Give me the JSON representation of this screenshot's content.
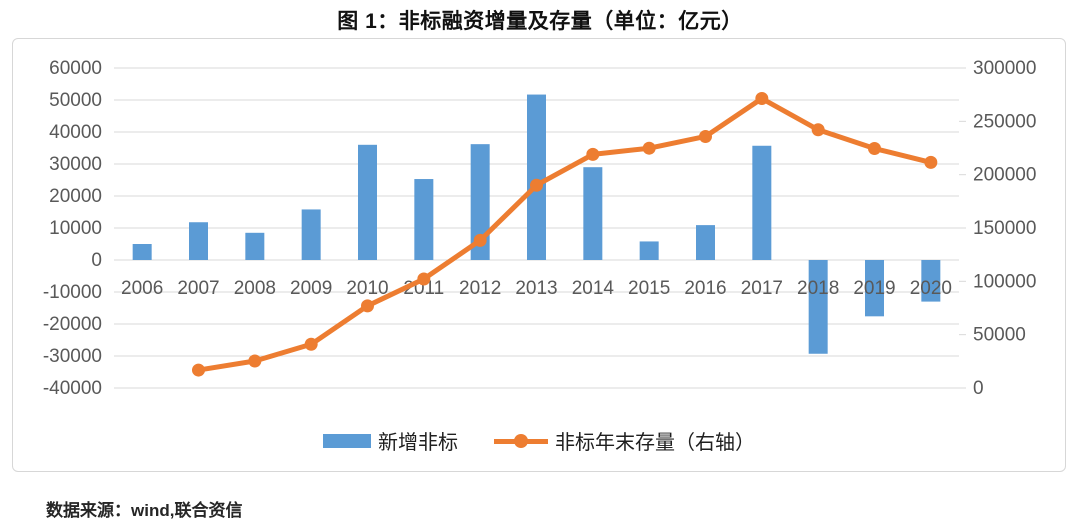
{
  "title": "图 1：非标融资增量及存量（单位：亿元）",
  "footer": {
    "source_label": "数据来源：wind,联合资信"
  },
  "legend": {
    "bar_label": "新增非标",
    "line_label": "非标年末存量（右轴）"
  },
  "colors": {
    "bar": "#5b9bd5",
    "line": "#ed7d31",
    "grid": "#d9d9d9",
    "tick_text": "#595959",
    "panel_border": "#d7d7d7"
  },
  "chart_data": {
    "type": "bar",
    "subtype": "bar-line-combo",
    "title": "图 1：非标融资增量及存量（单位：亿元）",
    "xlabel": "",
    "ylabel_left": "",
    "ylabel_right": "",
    "grid": true,
    "legend_position": "bottom",
    "categories": [
      "2006",
      "2007",
      "2008",
      "2009",
      "2010",
      "2011",
      "2012",
      "2013",
      "2014",
      "2015",
      "2016",
      "2017",
      "2018",
      "2019",
      "2020"
    ],
    "series": [
      {
        "name": "新增非标",
        "type": "bar",
        "axis": "left",
        "color": "#5b9bd5",
        "values": [
          5000,
          11800,
          8500,
          15800,
          36000,
          25300,
          36200,
          51700,
          29000,
          5800,
          10900,
          35700,
          -29300,
          -17600,
          -13000
        ]
      },
      {
        "name": "非标年末存量（右轴）",
        "type": "line",
        "axis": "right",
        "color": "#ed7d31",
        "values": [
          null,
          16800,
          25300,
          41000,
          77000,
          102200,
          138400,
          190100,
          219000,
          224800,
          235800,
          271400,
          242100,
          224500,
          211500
        ]
      }
    ],
    "left_axis": {
      "min": -40000,
      "max": 60000,
      "step": 10000,
      "ticks": [
        60000,
        50000,
        40000,
        30000,
        20000,
        10000,
        0,
        -10000,
        -20000,
        -30000,
        -40000
      ]
    },
    "right_axis": {
      "min": 0,
      "max": 300000,
      "step": 50000,
      "ticks": [
        300000,
        250000,
        200000,
        150000,
        100000,
        50000,
        0
      ]
    }
  }
}
